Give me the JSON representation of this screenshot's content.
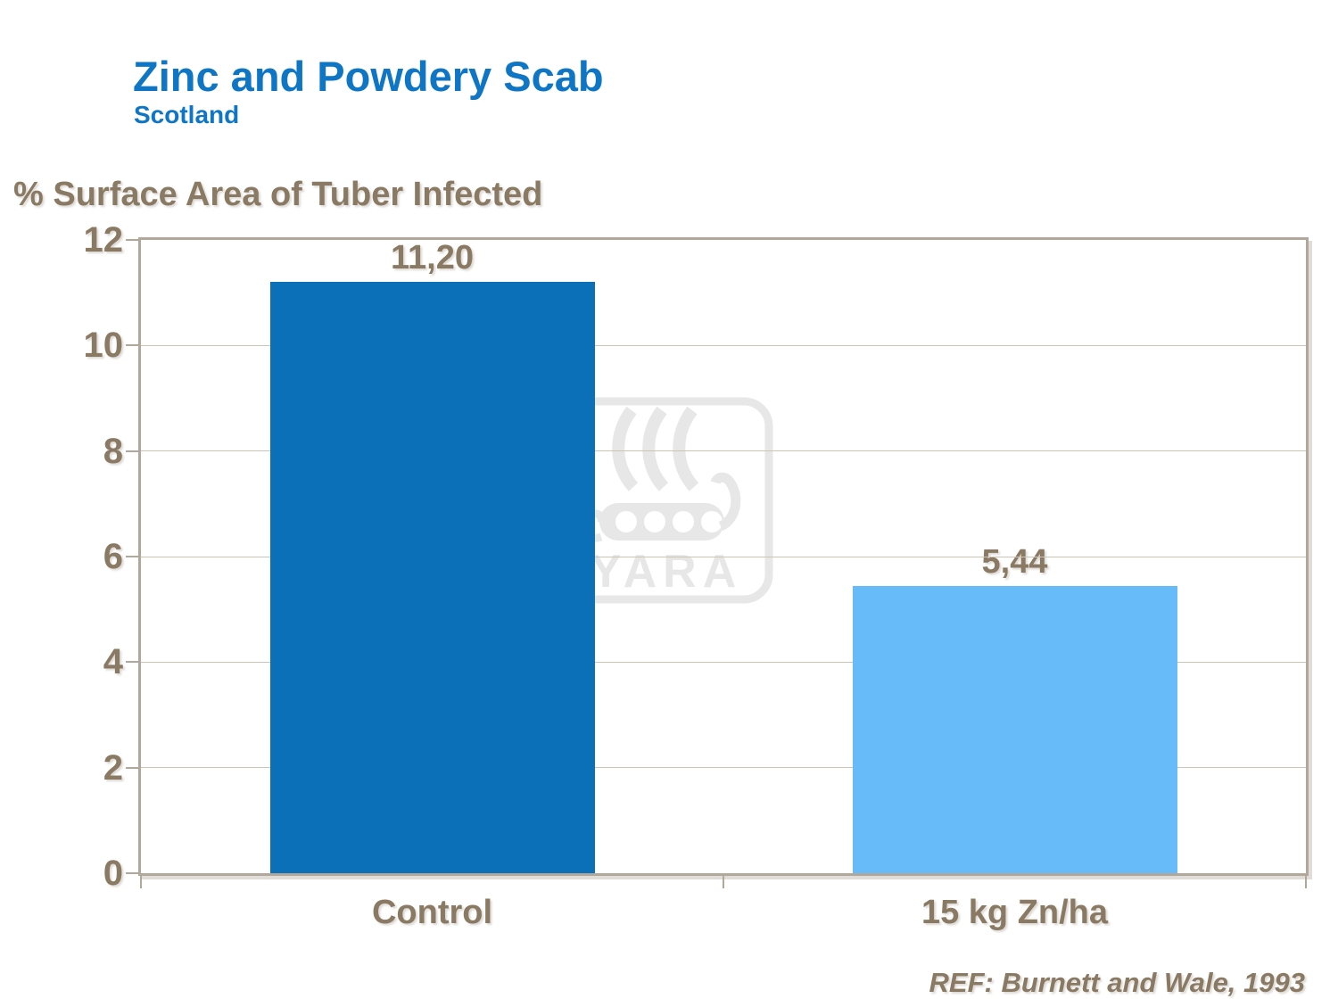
{
  "slide": {
    "reference": "REF: Burnett and Wale, 1993"
  },
  "watermark": {
    "text": "YARA",
    "icon": "yara-viking-ship-logo"
  },
  "chart_data": {
    "type": "bar",
    "title": "Zinc and Powdery Scab",
    "subtitle": "Scotland",
    "ylabel": "% Surface Area of Tuber Infected",
    "xlabel": "",
    "categories": [
      "Control",
      "15 kg Zn/ha"
    ],
    "values": [
      11.2,
      5.44
    ],
    "value_labels": [
      "11,20",
      "5,44"
    ],
    "ylim": [
      0,
      12
    ],
    "yticks": [
      0,
      2,
      4,
      6,
      8,
      10,
      12
    ],
    "grid": true,
    "legend_position": "none",
    "bar_colors": [
      "#0b70b8",
      "#66bbf8"
    ]
  },
  "colors": {
    "title_blue": "#0e76c4",
    "text_brown": "#8a7a63",
    "axis_border": "#b2a79b",
    "gridline": "#cdc4b6",
    "watermark_gray": "#e7e7e7",
    "bar_control": "#0b70b8",
    "bar_zinc": "#66bbf8"
  }
}
